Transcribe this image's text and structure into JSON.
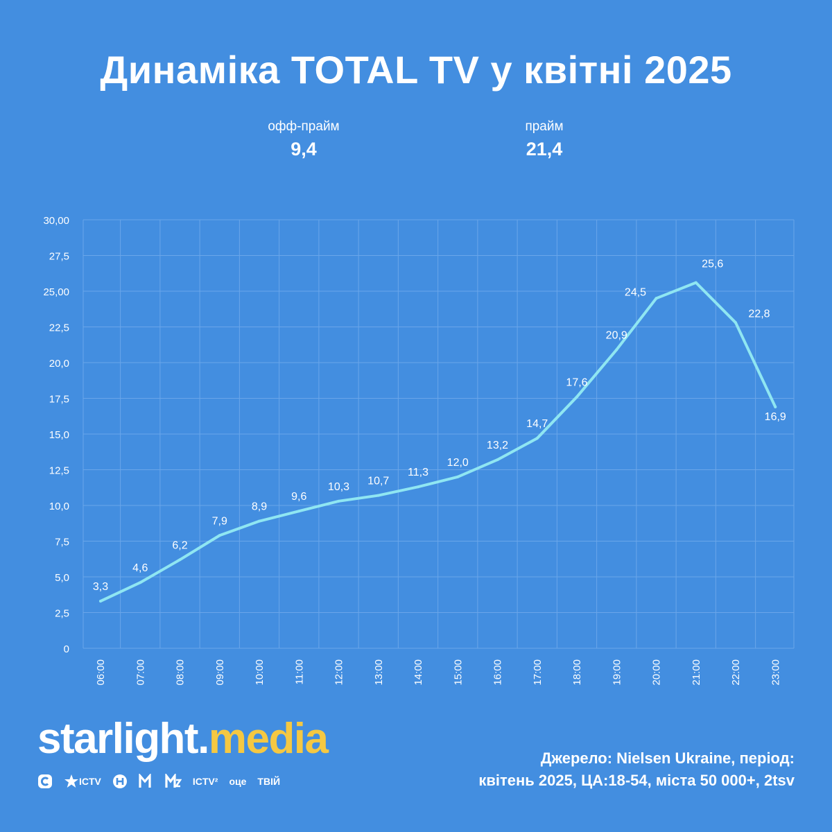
{
  "title": "Динаміка TOTAL TV у квітні 2025",
  "kpis": {
    "off_prime": {
      "label": "офф-прайм",
      "value": "9,4"
    },
    "prime": {
      "label": "прайм",
      "value": "21,4"
    }
  },
  "chart_data": {
    "type": "line",
    "title": "Динаміка TOTAL TV у квітні 2025",
    "xlabel": "",
    "ylabel": "",
    "categories": [
      "06:00",
      "07:00",
      "08:00",
      "09:00",
      "10:00",
      "11:00",
      "12:00",
      "13:00",
      "14:00",
      "15:00",
      "16:00",
      "17:00",
      "18:00",
      "19:00",
      "20:00",
      "21:00",
      "22:00",
      "23:00"
    ],
    "values": [
      3.3,
      4.6,
      6.2,
      7.9,
      8.9,
      9.6,
      10.3,
      10.7,
      11.3,
      12.0,
      13.2,
      14.7,
      17.6,
      20.9,
      24.5,
      25.6,
      22.8,
      16.9
    ],
    "data_labels": [
      "3,3",
      "4,6",
      "6,2",
      "7,9",
      "8,9",
      "9,6",
      "10,3",
      "10,7",
      "11,3",
      "12,0",
      "13,2",
      "14,7",
      "17,6",
      "20,9",
      "24,5",
      "25,6",
      "22,8",
      "16,9"
    ],
    "y_ticks": [
      0,
      2.5,
      5,
      7.5,
      10,
      12.5,
      15,
      17.5,
      20,
      22.5,
      25,
      27.5,
      30
    ],
    "y_tick_labels": [
      "0",
      "2,5",
      "5,0",
      "7,5",
      "10,0",
      "12,5",
      "15,0",
      "17,5",
      "20,0",
      "22,5",
      "25,00",
      "27,5",
      "30,00"
    ],
    "ylim": [
      0,
      30
    ],
    "grid": true,
    "legend": "none",
    "line_color": "#8fe6f2",
    "grid_color": "#6aa6ea"
  },
  "brand": {
    "name": "starlight",
    "dot": ".",
    "suffix": "media",
    "suffix_color": "#f5c842"
  },
  "channels": [
    {
      "icon": "stb-icon"
    },
    {
      "icon": "ictv-star-icon",
      "text": "ICTV"
    },
    {
      "icon": "novy-kanal-icon"
    },
    {
      "icon": "m1-icon"
    },
    {
      "icon": "m2-icon"
    },
    {
      "icon": "ictv2-icon",
      "text": "ICTV²"
    },
    {
      "icon": "oce-icon",
      "text": "оце"
    },
    {
      "icon": "tviy-icon",
      "text": "ТВІЙ"
    }
  ],
  "source": {
    "line1": "Джерело: Nielsen Ukraine, період:",
    "line2": "квітень 2025, ЦА:18-54, міста 50 000+, 2tsv"
  }
}
